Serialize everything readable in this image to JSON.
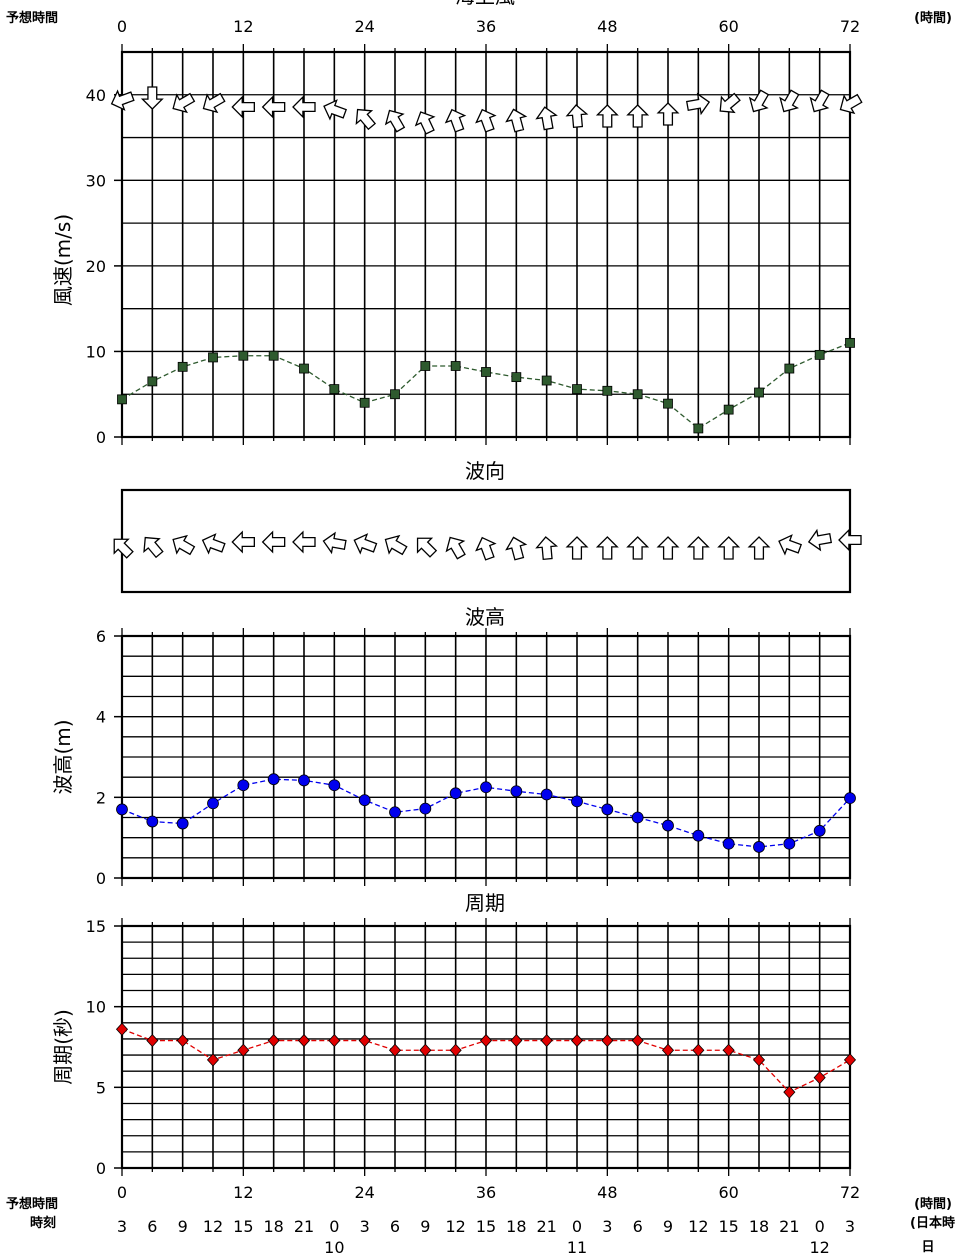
{
  "header": {
    "forecast_hours_label": "予想時間",
    "hours_unit": "(時間)",
    "top_title_partial": "海上風"
  },
  "footer": {
    "forecast_hours_label": "予想時間",
    "time_label": "時刻",
    "hours_unit": "(時間)",
    "local_time_label": "(日本時",
    "day_label": "日",
    "clock_hours": [
      "3",
      "6",
      "9",
      "12",
      "15",
      "18",
      "21",
      "0",
      "3",
      "6",
      "9",
      "12",
      "15",
      "18",
      "21",
      "0",
      "3",
      "6",
      "9",
      "12",
      "15",
      "18",
      "21",
      "0",
      "3"
    ],
    "days": [
      {
        "label": "10",
        "hour": 21
      },
      {
        "label": "11",
        "hour": 45
      },
      {
        "label": "12",
        "hour": 69
      }
    ]
  },
  "colors": {
    "wind": "#2e5a2e",
    "wave_height": "#0000ee",
    "period": "#e00000",
    "grid": "#000000"
  },
  "chart_data": [
    {
      "type": "line",
      "ylabel": "風速(m/s)",
      "x": [
        0,
        3,
        6,
        9,
        12,
        15,
        18,
        21,
        24,
        27,
        30,
        33,
        36,
        39,
        42,
        45,
        48,
        51,
        54,
        57,
        60,
        63,
        66,
        69,
        72
      ],
      "xticks": [
        0,
        12,
        24,
        36,
        48,
        60,
        72
      ],
      "ylim": [
        0,
        45
      ],
      "yticks": [
        0,
        10,
        20,
        30,
        40
      ],
      "series": [
        {
          "values": [
            4.4,
            6.5,
            8.2,
            9.3,
            9.5,
            9.5,
            8.0,
            5.6,
            4.0,
            5.0,
            8.3,
            8.3,
            7.6,
            7.0,
            6.6,
            5.6,
            5.4,
            5.0,
            3.9,
            1.0,
            3.2,
            5.2,
            8.0,
            9.6,
            11.0
          ]
        }
      ],
      "wind_direction_deg": [
        250,
        180,
        240,
        240,
        270,
        270,
        270,
        290,
        320,
        330,
        335,
        340,
        340,
        345,
        350,
        355,
        0,
        0,
        0,
        80,
        230,
        210,
        210,
        210,
        240
      ]
    },
    {
      "type": "scatter",
      "title": "波向",
      "x": [
        0,
        3,
        6,
        9,
        12,
        15,
        18,
        21,
        24,
        27,
        30,
        33,
        36,
        39,
        42,
        45,
        48,
        51,
        54,
        57,
        60,
        63,
        66,
        69,
        72
      ],
      "wave_direction_deg": [
        315,
        320,
        300,
        290,
        270,
        270,
        270,
        280,
        290,
        300,
        315,
        330,
        340,
        345,
        355,
        360,
        360,
        360,
        360,
        360,
        360,
        360,
        290,
        260,
        270
      ]
    },
    {
      "type": "line",
      "title": "波高",
      "ylabel": "波高(m)",
      "x": [
        0,
        3,
        6,
        9,
        12,
        15,
        18,
        21,
        24,
        27,
        30,
        33,
        36,
        39,
        42,
        45,
        48,
        51,
        54,
        57,
        60,
        63,
        66,
        69,
        72
      ],
      "xticks": [
        0,
        12,
        24,
        36,
        48,
        60,
        72
      ],
      "ylim": [
        0,
        6
      ],
      "yticks": [
        0,
        2,
        4,
        6
      ],
      "series": [
        {
          "values": [
            1.7,
            1.4,
            1.35,
            1.85,
            2.3,
            2.45,
            2.42,
            2.3,
            1.93,
            1.63,
            1.72,
            2.1,
            2.25,
            2.15,
            2.07,
            1.9,
            1.7,
            1.5,
            1.3,
            1.05,
            0.85,
            0.77,
            0.85,
            1.17,
            1.98
          ]
        }
      ]
    },
    {
      "type": "line",
      "title": "周期",
      "ylabel": "周期(秒)",
      "x": [
        0,
        3,
        6,
        9,
        12,
        15,
        18,
        21,
        24,
        27,
        30,
        33,
        36,
        39,
        42,
        45,
        48,
        51,
        54,
        57,
        60,
        63,
        66,
        69,
        72
      ],
      "xticks": [
        0,
        12,
        24,
        36,
        48,
        60,
        72
      ],
      "ylim": [
        0,
        15
      ],
      "yticks": [
        0,
        5,
        10,
        15
      ],
      "series": [
        {
          "values": [
            8.6,
            7.9,
            7.9,
            6.7,
            7.3,
            7.9,
            7.9,
            7.9,
            7.9,
            7.3,
            7.3,
            7.3,
            7.9,
            7.9,
            7.9,
            7.9,
            7.9,
            7.9,
            7.3,
            7.3,
            7.3,
            6.7,
            4.7,
            5.6,
            6.7
          ]
        }
      ]
    }
  ]
}
